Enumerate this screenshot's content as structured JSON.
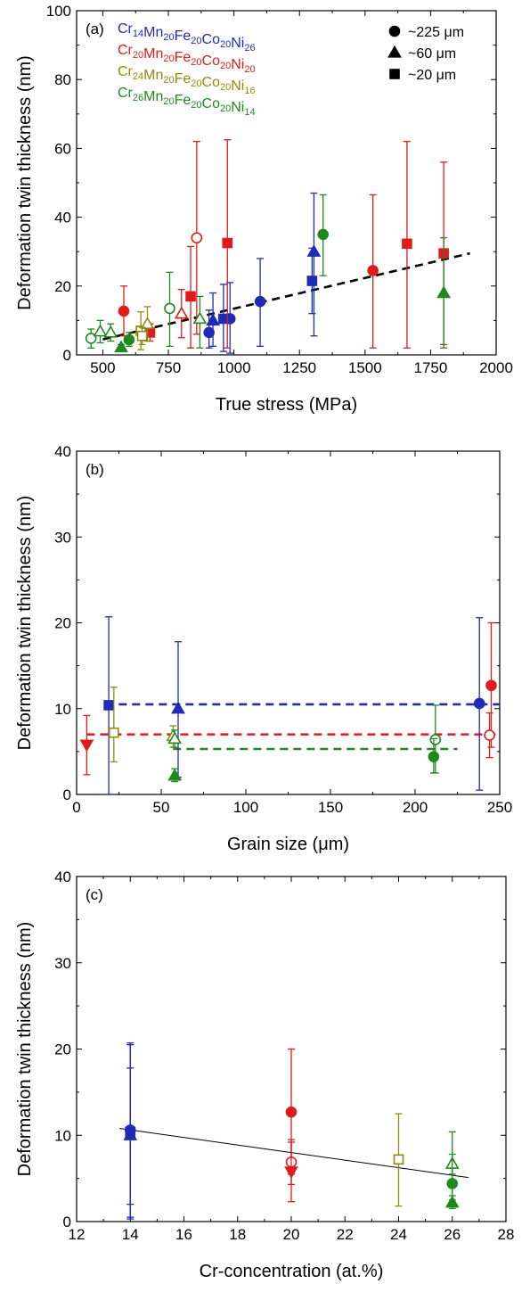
{
  "colors": {
    "Cr14": "#1f2bb5",
    "Cr20": "#e01b1b",
    "Cr24": "#8b8b10",
    "Cr26": "#1e8a1e",
    "black": "#000000"
  },
  "legend_alloys": [
    {
      "key": "Cr14",
      "parts": [
        [
          "Cr",
          "14"
        ],
        [
          "Mn",
          "20"
        ],
        [
          "Fe",
          "20"
        ],
        [
          "Co",
          "20"
        ],
        [
          "Ni",
          "26"
        ]
      ]
    },
    {
      "key": "Cr20",
      "parts": [
        [
          "Cr",
          "20"
        ],
        [
          "Mn",
          "20"
        ],
        [
          "Fe",
          "20"
        ],
        [
          "Co",
          "20"
        ],
        [
          "Ni",
          "20"
        ]
      ]
    },
    {
      "key": "Cr24",
      "parts": [
        [
          "Cr",
          "24"
        ],
        [
          "Mn",
          "20"
        ],
        [
          "Fe",
          "20"
        ],
        [
          "Co",
          "20"
        ],
        [
          "Ni",
          "16"
        ]
      ]
    },
    {
      "key": "Cr26",
      "parts": [
        [
          "Cr",
          "26"
        ],
        [
          "Mn",
          "20"
        ],
        [
          "Fe",
          "20"
        ],
        [
          "Co",
          "20"
        ],
        [
          "Ni",
          "14"
        ]
      ]
    }
  ],
  "legend_grains": [
    {
      "marker": "circle",
      "label": "~225 μm"
    },
    {
      "marker": "triangle",
      "label": "~60 μm"
    },
    {
      "marker": "square",
      "label": "~20 μm"
    }
  ],
  "chart_data": [
    {
      "type": "scatter",
      "panel": "(a)",
      "xlabel": "True stress (MPa)",
      "ylabel": "Deformation twin thickness (nm)",
      "xlim": [
        400,
        2000
      ],
      "ylim": [
        0,
        100
      ],
      "xticks": [
        500,
        750,
        1000,
        1250,
        1500,
        1750,
        2000
      ],
      "yticks": [
        0,
        20,
        40,
        60,
        80,
        100
      ],
      "fit_lines": [
        {
          "color": "black",
          "dash": true,
          "x": [
            500,
            1900
          ],
          "y": [
            4.5,
            29.5
          ]
        }
      ],
      "points": [
        {
          "alloy": "Cr14",
          "marker": "circle",
          "filled": true,
          "x": 905,
          "y": 6.5,
          "lo": 2,
          "hi": 13
        },
        {
          "alloy": "Cr14",
          "marker": "triangle",
          "filled": true,
          "x": 920,
          "y": 10,
          "lo": 2.5,
          "hi": 18
        },
        {
          "alloy": "Cr14",
          "marker": "square",
          "filled": true,
          "x": 960,
          "y": 10.5,
          "lo": 1,
          "hi": 20.5
        },
        {
          "alloy": "Cr14",
          "marker": "circle",
          "filled": true,
          "x": 985,
          "y": 10.5,
          "lo": 0.5,
          "hi": 21
        },
        {
          "alloy": "Cr14",
          "marker": "circle",
          "filled": true,
          "x": 1100,
          "y": 15.5,
          "lo": 2.5,
          "hi": 28
        },
        {
          "alloy": "Cr14",
          "marker": "square",
          "filled": true,
          "x": 1298,
          "y": 21.5,
          "lo": 12,
          "hi": 31
        },
        {
          "alloy": "Cr14",
          "marker": "triangle",
          "filled": true,
          "x": 1305,
          "y": 30,
          "lo": 5.5,
          "hi": 47
        },
        {
          "alloy": "Cr20",
          "marker": "circle",
          "filled": true,
          "x": 580,
          "y": 12.7,
          "lo": 5.5,
          "hi": 20
        },
        {
          "alloy": "Cr20",
          "marker": "square",
          "filled": true,
          "x": 680,
          "y": 6.5,
          "lo": 4,
          "hi": 9
        },
        {
          "alloy": "Cr20",
          "marker": "triangle",
          "filled": false,
          "x": 800,
          "y": 12,
          "lo": 5,
          "hi": 19
        },
        {
          "alloy": "Cr20",
          "marker": "square",
          "filled": true,
          "x": 835,
          "y": 17,
          "lo": 2,
          "hi": 31.5
        },
        {
          "alloy": "Cr20",
          "marker": "circle",
          "filled": false,
          "x": 858,
          "y": 34,
          "lo": 6,
          "hi": 62
        },
        {
          "alloy": "Cr20",
          "marker": "square",
          "filled": true,
          "x": 975,
          "y": 32.5,
          "lo": 2,
          "hi": 62.5
        },
        {
          "alloy": "Cr20",
          "marker": "circle",
          "filled": true,
          "x": 1530,
          "y": 24.5,
          "lo": 2,
          "hi": 46.5
        },
        {
          "alloy": "Cr20",
          "marker": "square",
          "filled": true,
          "x": 1660,
          "y": 32.3,
          "lo": 2,
          "hi": 62
        },
        {
          "alloy": "Cr20",
          "marker": "square",
          "filled": true,
          "x": 1800,
          "y": 29.5,
          "lo": 3,
          "hi": 56
        },
        {
          "alloy": "Cr24",
          "marker": "square",
          "filled": false,
          "x": 645,
          "y": 7,
          "lo": 1.5,
          "hi": 12.5
        },
        {
          "alloy": "Cr24",
          "marker": "triangle",
          "filled": false,
          "x": 670,
          "y": 9,
          "lo": 4,
          "hi": 14
        },
        {
          "alloy": "Cr24",
          "marker": "square",
          "filled": false,
          "x": 650,
          "y": 5.5,
          "lo": 3,
          "hi": 8
        },
        {
          "alloy": "Cr26",
          "marker": "circle",
          "filled": false,
          "x": 455,
          "y": 4.8,
          "lo": 2,
          "hi": 7.5
        },
        {
          "alloy": "Cr26",
          "marker": "triangle",
          "filled": false,
          "x": 490,
          "y": 6.8,
          "lo": 3.5,
          "hi": 10
        },
        {
          "alloy": "Cr26",
          "marker": "triangle",
          "filled": false,
          "x": 530,
          "y": 6.5,
          "lo": 4,
          "hi": 9
        },
        {
          "alloy": "Cr26",
          "marker": "triangle",
          "filled": true,
          "x": 570,
          "y": 2.2,
          "lo": 1.5,
          "hi": 3
        },
        {
          "alloy": "Cr26",
          "marker": "circle",
          "filled": true,
          "x": 600,
          "y": 4.4,
          "lo": 2.5,
          "hi": 6.5
        },
        {
          "alloy": "Cr26",
          "marker": "circle",
          "filled": false,
          "x": 755,
          "y": 13.5,
          "lo": 2.5,
          "hi": 24
        },
        {
          "alloy": "Cr26",
          "marker": "triangle",
          "filled": false,
          "x": 870,
          "y": 10.5,
          "lo": 2,
          "hi": 17
        },
        {
          "alloy": "Cr26",
          "marker": "circle",
          "filled": true,
          "x": 1340,
          "y": 35,
          "lo": 23,
          "hi": 46.5
        },
        {
          "alloy": "Cr26",
          "marker": "triangle",
          "filled": true,
          "x": 1800,
          "y": 18,
          "lo": 2,
          "hi": 34
        }
      ]
    },
    {
      "type": "scatter",
      "panel": "(b)",
      "xlabel": "Grain size (μm)",
      "ylabel": "Deformation twin thickness (nm)",
      "xlim": [
        0,
        250
      ],
      "ylim": [
        0,
        40
      ],
      "xticks": [
        0,
        50,
        100,
        150,
        200,
        250
      ],
      "yticks": [
        0,
        10,
        20,
        30,
        40
      ],
      "fit_lines": [
        {
          "color": "Cr14",
          "dash": true,
          "x": [
            17,
            250
          ],
          "y": [
            10.5,
            10.5
          ]
        },
        {
          "color": "Cr20",
          "dash": true,
          "x": [
            6,
            250
          ],
          "y": [
            7,
            7
          ]
        },
        {
          "color": "Cr26",
          "dash": true,
          "x": [
            57,
            225
          ],
          "y": [
            5.3,
            5.3
          ]
        }
      ],
      "points": [
        {
          "alloy": "Cr14",
          "marker": "square",
          "filled": true,
          "x": 19,
          "y": 10.4,
          "lo": 0,
          "hi": 20.7
        },
        {
          "alloy": "Cr14",
          "marker": "triangle",
          "filled": true,
          "x": 60,
          "y": 10,
          "lo": 2,
          "hi": 17.8
        },
        {
          "alloy": "Cr14",
          "marker": "circle",
          "filled": true,
          "x": 238,
          "y": 10.6,
          "lo": 0.5,
          "hi": 20.6
        },
        {
          "alloy": "Cr20",
          "marker": "triangle-down",
          "filled": true,
          "x": 6,
          "y": 5.8,
          "lo": 2.3,
          "hi": 9.2
        },
        {
          "alloy": "Cr20",
          "marker": "circle",
          "filled": true,
          "x": 245,
          "y": 12.7,
          "lo": 5.5,
          "hi": 20
        },
        {
          "alloy": "Cr20",
          "marker": "circle",
          "filled": false,
          "x": 244,
          "y": 6.9,
          "lo": 4.3,
          "hi": 9.5
        },
        {
          "alloy": "Cr24",
          "marker": "square",
          "filled": false,
          "x": 22,
          "y": 7.2,
          "lo": 3.8,
          "hi": 12.5
        },
        {
          "alloy": "Cr24",
          "marker": "triangle",
          "filled": false,
          "x": 57,
          "y": 6.8,
          "lo": 5.5,
          "hi": 8
        },
        {
          "alloy": "Cr26",
          "marker": "triangle",
          "filled": false,
          "x": 58,
          "y": 6.5,
          "lo": 5.5,
          "hi": 7.5
        },
        {
          "alloy": "Cr26",
          "marker": "triangle",
          "filled": true,
          "x": 58,
          "y": 2.2,
          "lo": 1.5,
          "hi": 3
        },
        {
          "alloy": "Cr26",
          "marker": "circle",
          "filled": false,
          "x": 212,
          "y": 6.4,
          "lo": 2.5,
          "hi": 10.4
        },
        {
          "alloy": "Cr26",
          "marker": "circle",
          "filled": true,
          "x": 211,
          "y": 4.4,
          "lo": 2.5,
          "hi": 6.5
        }
      ]
    },
    {
      "type": "scatter",
      "panel": "(c)",
      "xlabel": "Cr-concentration (at.%)",
      "ylabel": "Deformation twin thickness (nm)",
      "xlim": [
        12,
        28
      ],
      "ylim": [
        0,
        40
      ],
      "xticks": [
        12,
        14,
        16,
        18,
        20,
        22,
        24,
        26,
        28
      ],
      "yticks": [
        0,
        10,
        20,
        30,
        40
      ],
      "fit_lines": [
        {
          "color": "black",
          "dash": false,
          "x": [
            13.6,
            26.6
          ],
          "y": [
            10.8,
            5.1
          ]
        }
      ],
      "points": [
        {
          "alloy": "Cr14",
          "marker": "circle",
          "filled": true,
          "x": 14,
          "y": 10.6,
          "lo": 0.5,
          "hi": 20.7
        },
        {
          "alloy": "Cr14",
          "marker": "triangle",
          "filled": true,
          "x": 14,
          "y": 10,
          "lo": 2,
          "hi": 17.8
        },
        {
          "alloy": "Cr14",
          "marker": "square",
          "filled": true,
          "x": 14,
          "y": 10.4,
          "lo": 0.3,
          "hi": 20.5
        },
        {
          "alloy": "Cr20",
          "marker": "circle",
          "filled": true,
          "x": 20,
          "y": 12.7,
          "lo": 5.5,
          "hi": 20
        },
        {
          "alloy": "Cr20",
          "marker": "circle",
          "filled": false,
          "x": 20,
          "y": 6.9,
          "lo": 4.3,
          "hi": 9.5
        },
        {
          "alloy": "Cr20",
          "marker": "triangle-down",
          "filled": true,
          "x": 20,
          "y": 5.8,
          "lo": 2.3,
          "hi": 9.2
        },
        {
          "alloy": "Cr24",
          "marker": "square",
          "filled": false,
          "x": 24,
          "y": 7.2,
          "lo": 1.8,
          "hi": 12.5
        },
        {
          "alloy": "Cr26",
          "marker": "triangle",
          "filled": false,
          "x": 26,
          "y": 6.7,
          "lo": 5.5,
          "hi": 7.8
        },
        {
          "alloy": "Cr26",
          "marker": "circle",
          "filled": true,
          "x": 26,
          "y": 4.4,
          "lo": 2.5,
          "hi": 10.4
        },
        {
          "alloy": "Cr26",
          "marker": "triangle",
          "filled": true,
          "x": 26,
          "y": 2.2,
          "lo": 1.5,
          "hi": 3
        }
      ]
    }
  ]
}
